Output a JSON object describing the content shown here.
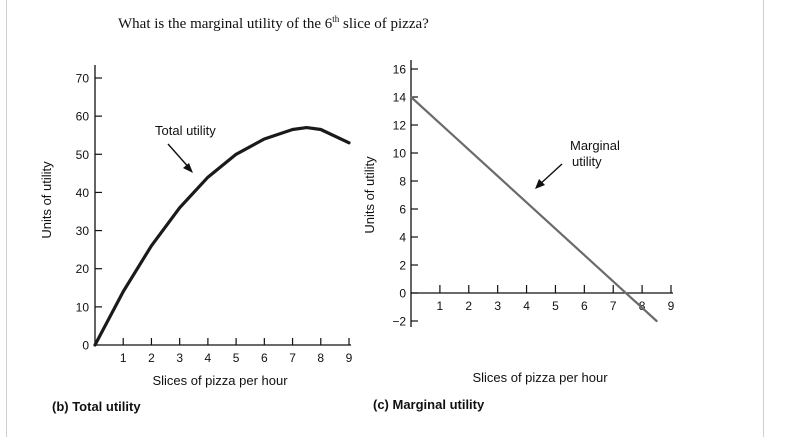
{
  "question": {
    "before": "What is the marginal utility of the 6",
    "superscript": "th",
    "after": " slice of pizza?"
  },
  "chart_data": [
    {
      "type": "line",
      "caption": "(b) Total utility",
      "xlabel": "Slices of pizza per hour",
      "ylabel": "Units of utility",
      "xlim": [
        0,
        9
      ],
      "ylim": [
        0,
        70
      ],
      "xticks": [
        1,
        2,
        3,
        4,
        5,
        6,
        7,
        8,
        9
      ],
      "yticks": [
        0,
        10,
        20,
        30,
        40,
        50,
        60,
        70
      ],
      "annotation": "Total utility",
      "series": [
        {
          "x": [
            0,
            1,
            2,
            3,
            4,
            5,
            6,
            7,
            7.5,
            8,
            9
          ],
          "y": [
            0,
            14,
            26,
            36,
            44,
            50,
            54,
            56.5,
            57,
            56.5,
            53
          ],
          "color": "#1a1a1a"
        }
      ]
    },
    {
      "type": "line",
      "caption": "(c) Marginal utility",
      "xlabel": "Slices of pizza per hour",
      "ylabel": "Units of utility",
      "xlim": [
        0,
        9
      ],
      "ylim": [
        -2,
        16
      ],
      "xticks": [
        1,
        2,
        3,
        4,
        5,
        6,
        7,
        8,
        9
      ],
      "yticks": [
        -2,
        0,
        2,
        4,
        6,
        8,
        10,
        12,
        14,
        16
      ],
      "annotation": [
        "Marginal",
        "utility"
      ],
      "series": [
        {
          "x": [
            0,
            8.5
          ],
          "y": [
            14,
            -2
          ],
          "color": "#6b6b6b"
        }
      ]
    }
  ]
}
